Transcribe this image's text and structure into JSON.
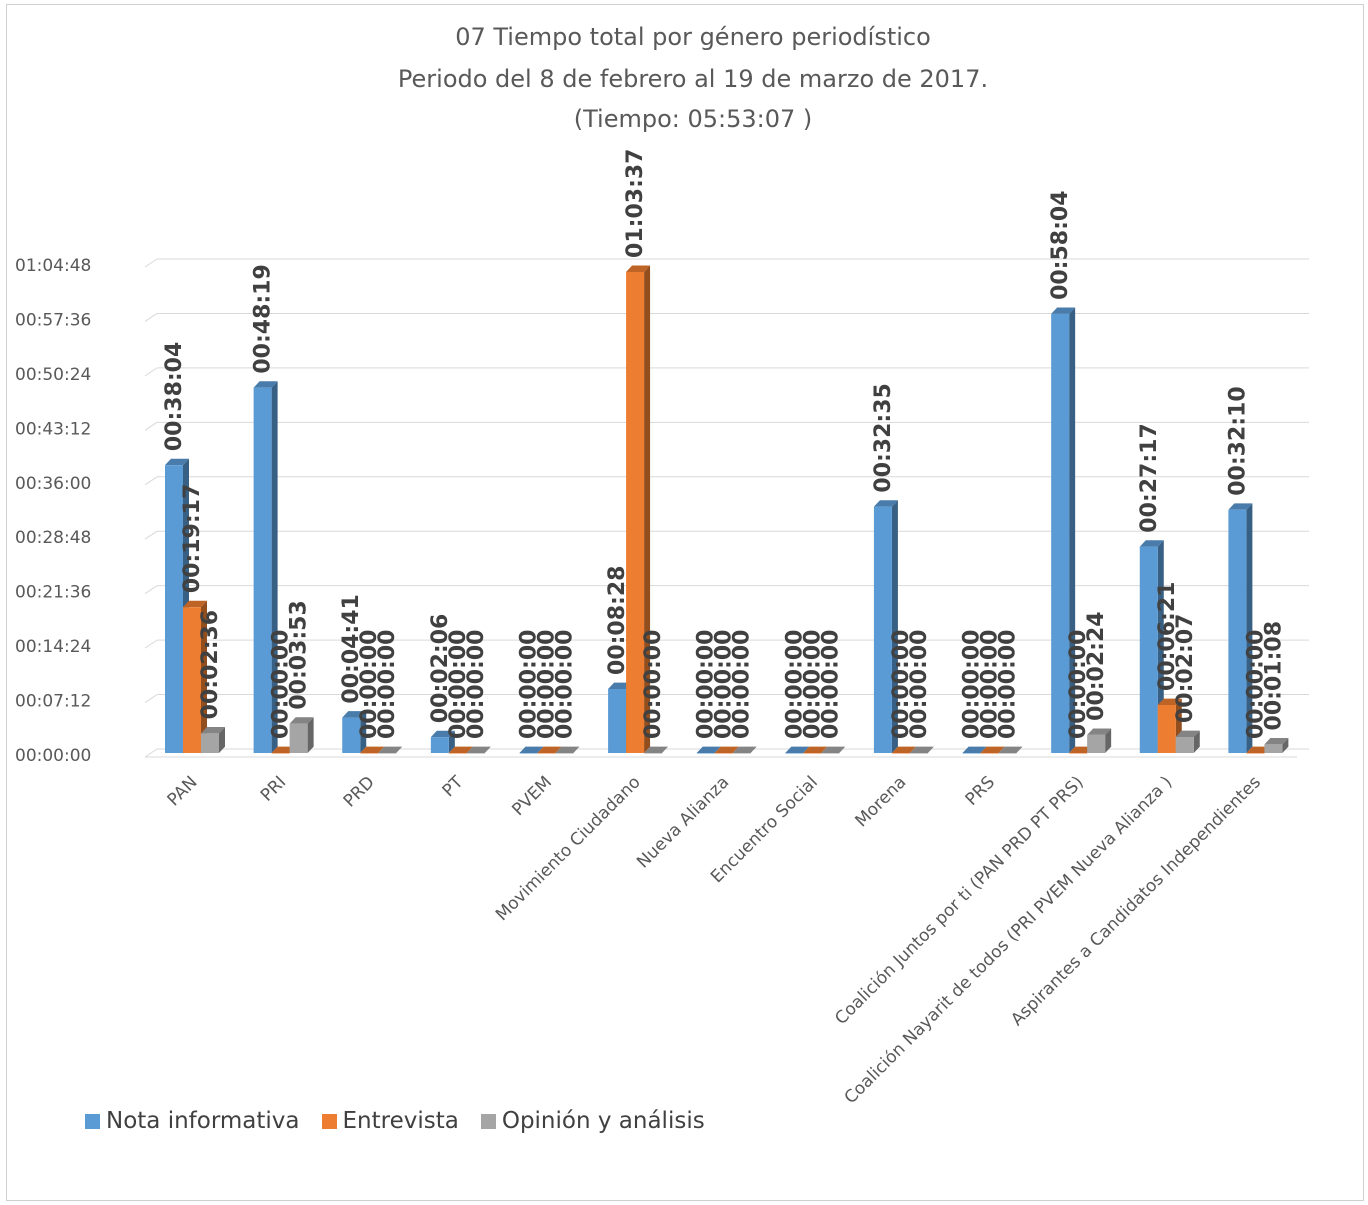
{
  "chart_data": {
    "type": "bar",
    "title": "07 Tiempo total por género periodístico",
    "subtitle": "Periodo del 8 de febrero al 19 de marzo de 2017.",
    "subtitle2": "(Tiempo: 05:53:07  )",
    "xlabel": "",
    "ylabel": "",
    "ylim": [
      "00:00:00",
      "01:04:48"
    ],
    "y_ticks": [
      "00:00:00",
      "00:07:12",
      "00:14:24",
      "00:21:36",
      "00:28:48",
      "00:36:00",
      "00:43:12",
      "00:50:24",
      "00:57:36",
      "01:04:48"
    ],
    "grid": true,
    "legend_position": "bottom-left",
    "categories": [
      "PAN",
      "PRI",
      "PRD",
      "PT",
      "PVEM",
      "Movimiento Ciudadano",
      "Nueva Alianza",
      "Encuentro Social",
      "Morena",
      "PRS",
      "Coalición Juntos por ti (PAN PRD PT PRS)",
      "Coalición Nayarit de todos (PRI PVEM Nueva Alianza )",
      "Aspirantes a Candidatos Independientes"
    ],
    "series": [
      {
        "name": "Nota informativa",
        "color": "#5B9BD5",
        "values": [
          "00:38:04",
          "00:48:19",
          "00:04:41",
          "00:02:06",
          "00:00:00",
          "00:08:28",
          "00:00:00",
          "00:00:00",
          "00:32:35",
          "00:00:00",
          "00:58:04",
          "00:27:17",
          "00:32:10"
        ]
      },
      {
        "name": "Entrevista",
        "color": "#ED7D31",
        "values": [
          "00:19:17",
          "00:00:00",
          "00:00:00",
          "00:00:00",
          "00:00:00",
          "01:03:37",
          "00:00:00",
          "00:00:00",
          "00:00:00",
          "00:00:00",
          "00:00:00",
          "00:06:21",
          "00:00:00"
        ]
      },
      {
        "name": "Opinión y análisis",
        "color": "#A5A5A5",
        "values": [
          "00:02:36",
          "00:03:53",
          "00:00:00",
          "00:00:00",
          "00:00:00",
          "00:00:00",
          "00:00:00",
          "00:00:00",
          "00:00:00",
          "00:00:00",
          "00:02:24",
          "00:02:07",
          "00:01:08"
        ]
      }
    ]
  }
}
